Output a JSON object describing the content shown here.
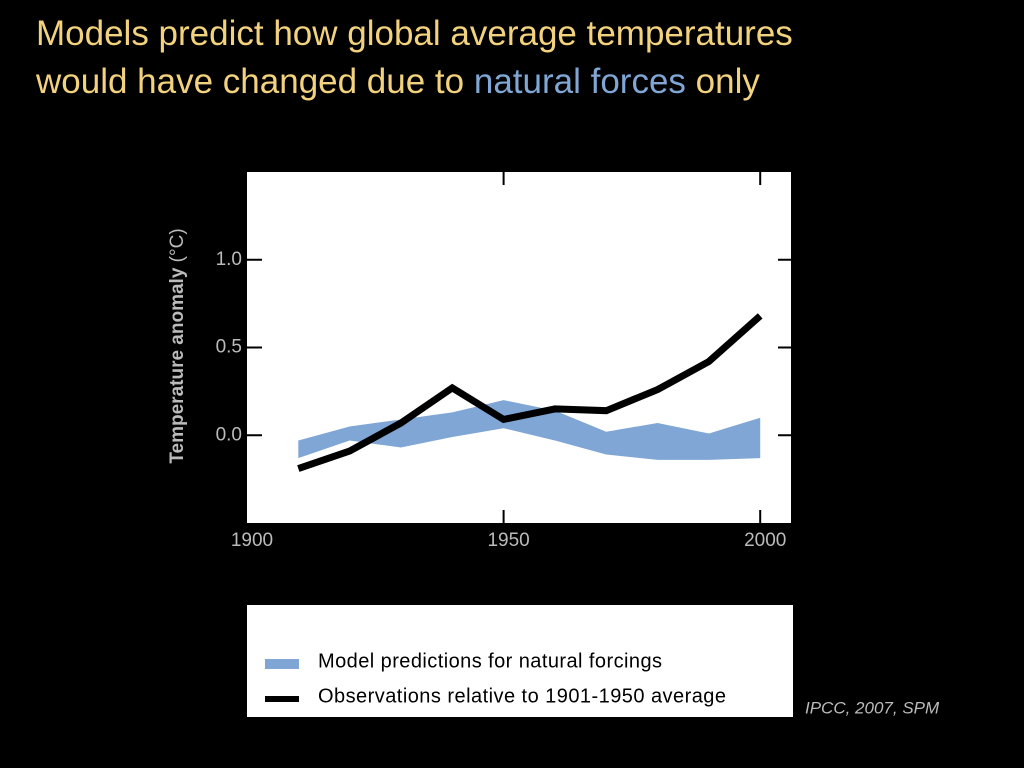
{
  "chart_data": {
    "type": "line",
    "title": {
      "line1": "Models predict how global average temperatures",
      "line2_start": "would have changed due to",
      "highlight": "natural forces",
      "line2_end": "only"
    },
    "y_label": "Temperature anomaly",
    "y_unit": "(°C)",
    "x": [
      1910,
      1920,
      1930,
      1940,
      1950,
      1960,
      1970,
      1980,
      1990,
      2000
    ],
    "series": [
      {
        "name": "Model predictions for natural forcings",
        "color": "#7fa6d4",
        "upper": [
          -0.03,
          0.05,
          0.09,
          0.13,
          0.2,
          0.14,
          0.02,
          0.07,
          0.01,
          0.1
        ],
        "lower": [
          -0.13,
          -0.03,
          -0.07,
          -0.01,
          0.04,
          -0.03,
          -0.11,
          -0.14,
          -0.14,
          -0.13
        ]
      },
      {
        "name": "Observations relative to 1901-1950 average",
        "color": "#000000",
        "values": [
          -0.19,
          -0.09,
          0.07,
          0.27,
          0.09,
          0.15,
          0.14,
          0.26,
          0.42,
          0.68
        ]
      }
    ],
    "xlim": [
      1900,
      2006
    ],
    "ylim": [
      -0.5,
      1.5
    ],
    "xticks": [
      1900,
      1950,
      2000
    ],
    "yticks": [
      {
        "value": 0,
        "label": "0.0"
      },
      0.5,
      {
        "value": 1,
        "label": "1.0"
      }
    ],
    "source": "IPCC, 2007, SPM"
  }
}
